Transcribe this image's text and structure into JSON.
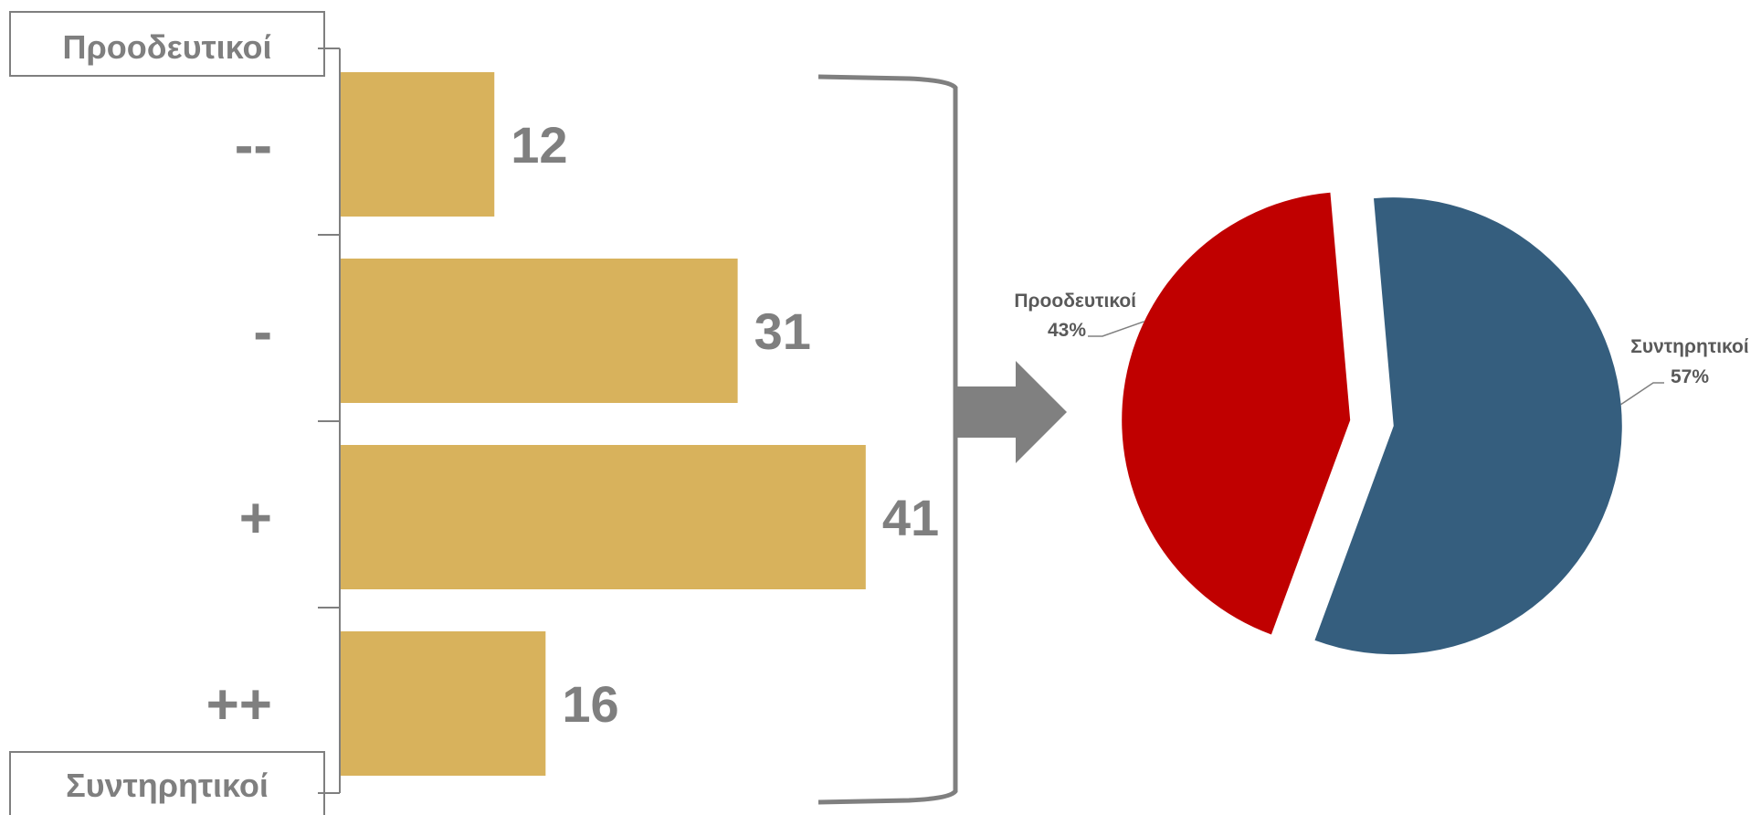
{
  "chart_data": [
    {
      "type": "bar",
      "orientation": "horizontal",
      "categories": [
        "--",
        "-",
        "+",
        "++"
      ],
      "values": [
        12,
        31,
        41,
        16
      ],
      "xlim": [
        0,
        50
      ],
      "axis_end_labels": {
        "top": "Προοδευτικοί",
        "bottom": "Συντηρητικοί"
      },
      "colors": {
        "bar": "#D8B25C",
        "text": "#7F7F7F",
        "axis": "#7F7F7F"
      }
    },
    {
      "type": "pie",
      "slices": [
        {
          "label": "Προοδευτικοί",
          "value": 43,
          "display": "43%",
          "color": "#C00000"
        },
        {
          "label": "Συντηρητικοί",
          "value": 57,
          "display": "57%",
          "color": "#355E7E"
        }
      ],
      "exploded": true,
      "colors": {
        "text": "#595959",
        "leader": "#808080"
      }
    }
  ],
  "connector": {
    "arrow_color": "#808080",
    "brace_color": "#7F7F7F"
  }
}
